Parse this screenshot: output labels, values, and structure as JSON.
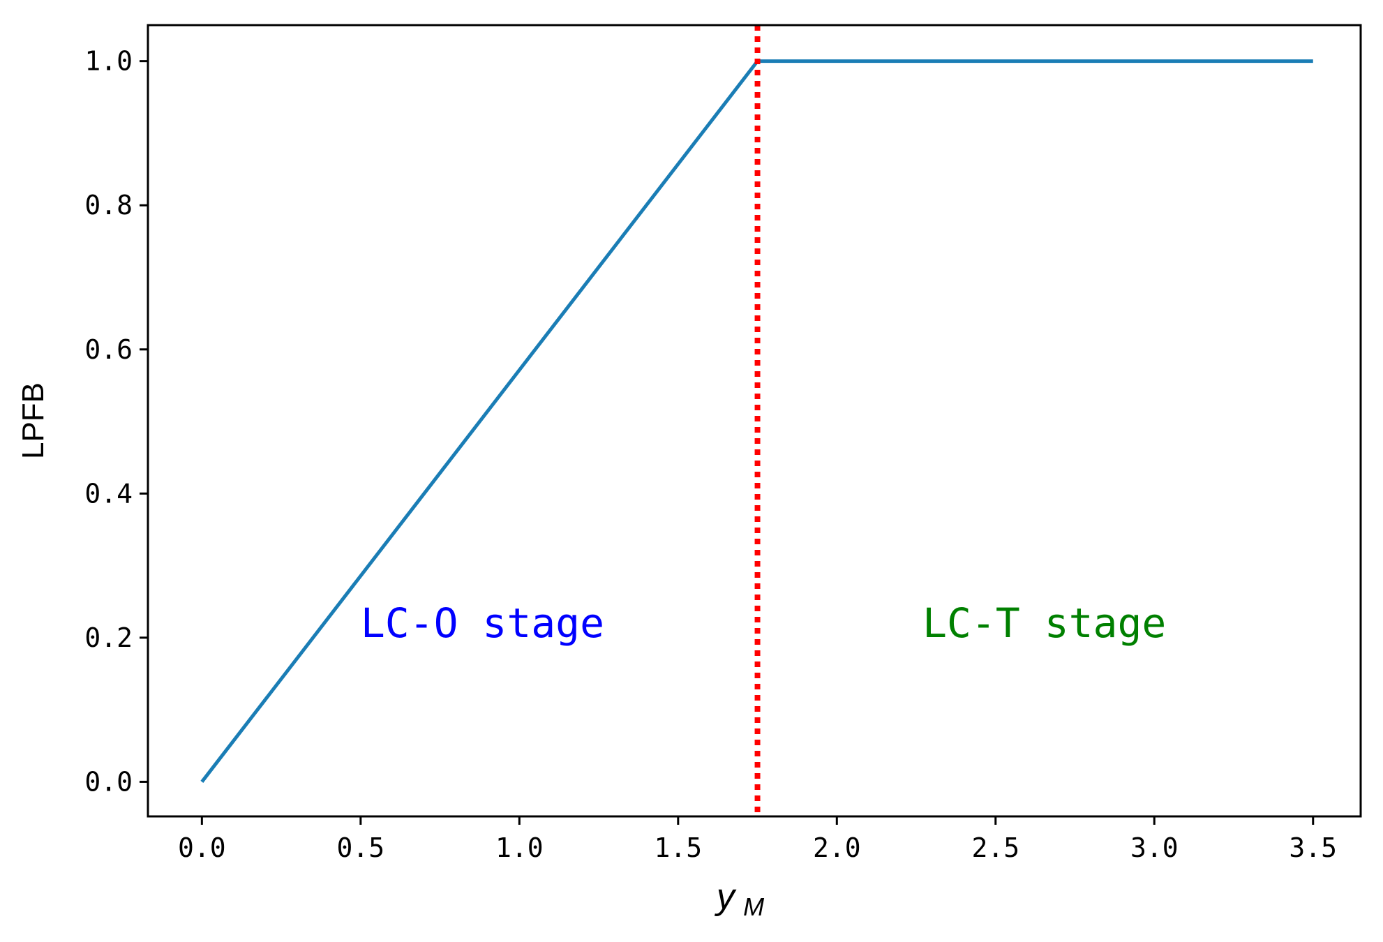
{
  "chart_data": {
    "type": "line",
    "title": "",
    "xlabel": "y",
    "xlabel_sub": "M",
    "ylabel": "LPFB",
    "xlim": [
      -0.17,
      3.65
    ],
    "ylim": [
      -0.048,
      1.05
    ],
    "x_ticks": [
      0.0,
      0.5,
      1.0,
      1.5,
      2.0,
      2.5,
      3.0,
      3.5
    ],
    "x_tick_labels": [
      "0.0",
      "0.5",
      "1.0",
      "1.5",
      "2.0",
      "2.5",
      "3.0",
      "3.5"
    ],
    "y_ticks": [
      0.0,
      0.2,
      0.4,
      0.6,
      0.8,
      1.0
    ],
    "y_tick_labels": [
      "0.0",
      "0.2",
      "0.4",
      "0.6",
      "0.8",
      "1.0"
    ],
    "grid": false,
    "series": [
      {
        "x": [
          0.0,
          1.75,
          3.5
        ],
        "y": [
          0.0,
          1.0,
          1.0
        ],
        "color": "#1a7db5"
      }
    ],
    "vline": {
      "x": 1.75,
      "color": "#ff0000",
      "style": "dotted"
    },
    "annotations": [
      {
        "text": "LC-O stage",
        "x": 0.5,
        "y": 0.22,
        "color": "#0000ff"
      },
      {
        "text": "LC-T stage",
        "x": 2.27,
        "y": 0.22,
        "color": "#008000"
      }
    ]
  }
}
